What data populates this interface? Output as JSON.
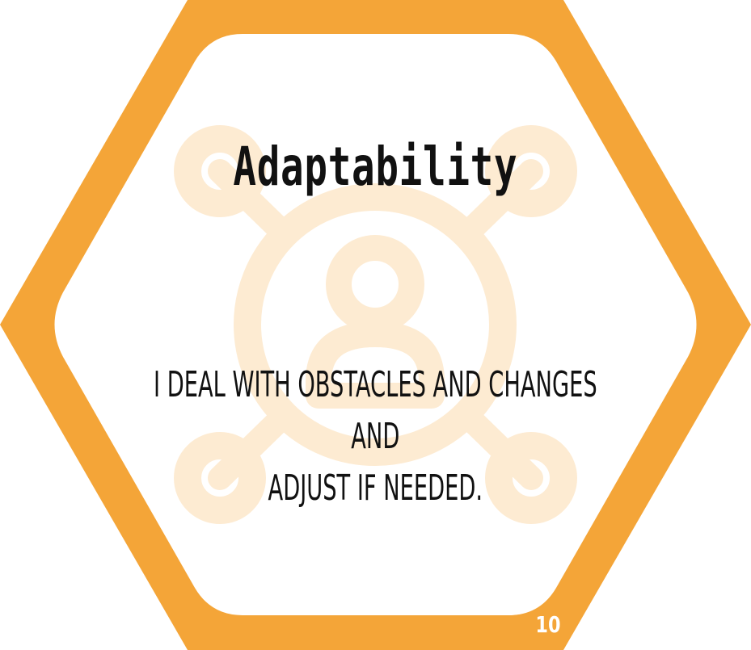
{
  "card": {
    "title": "Adaptability",
    "description_lines": [
      "I deal with obstacles and changes and",
      "adjust if needed."
    ],
    "page_number": "10",
    "icon": "network-person-icon"
  },
  "colors": {
    "frame": "#F4A538",
    "watermark": "#FDEBD2",
    "text": "#111111",
    "background": "#FFFFFF"
  }
}
